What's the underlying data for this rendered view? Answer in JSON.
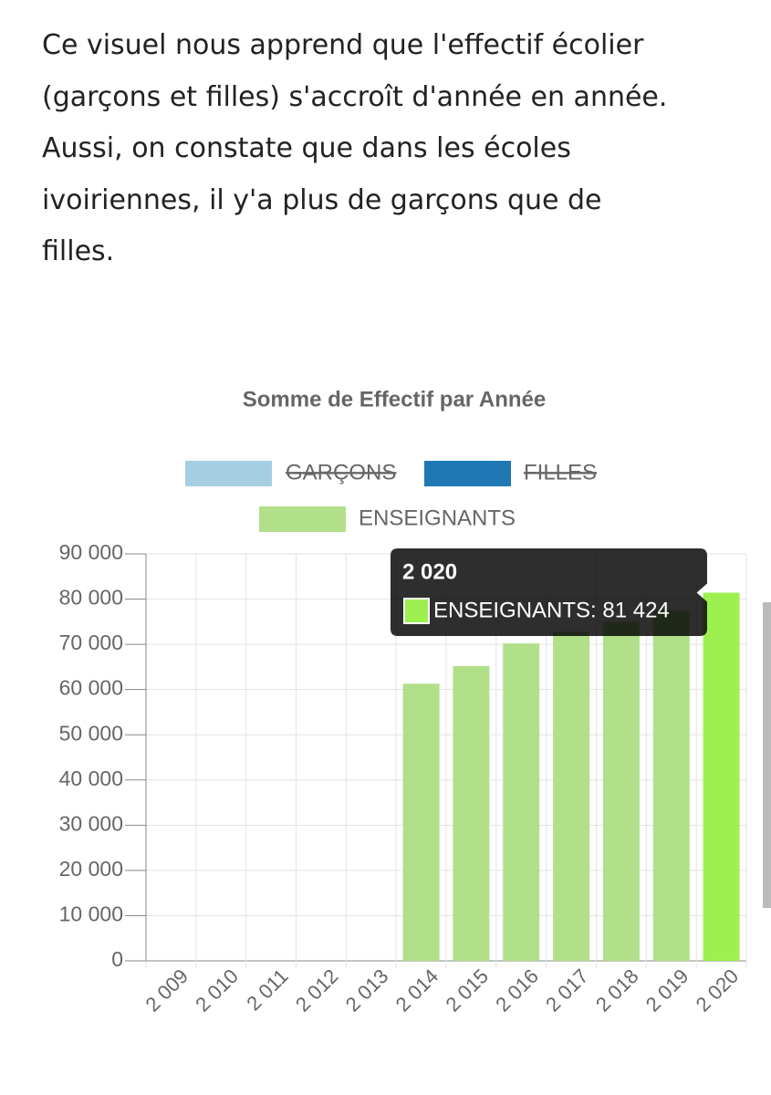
{
  "paragraph_lines": [
    "Ce visuel nous apprend que l'effectif écolier",
    "(garçons et filles) s'accroît d'année en année.",
    "Aussi, on constate que dans les écoles",
    "ivoiriennes, il y'a plus de garçons que de",
    "filles."
  ],
  "chart_data": {
    "type": "bar",
    "title": "Somme de Effectif par Année",
    "categories": [
      "2 009",
      "2 010",
      "2 011",
      "2 012",
      "2 013",
      "2 014",
      "2 015",
      "2 016",
      "2 017",
      "2 018",
      "2 019",
      "2 020"
    ],
    "series": [
      {
        "name": "GARÇONS",
        "color": "#a6cee3",
        "hidden": true,
        "values": [
          null,
          null,
          null,
          null,
          null,
          null,
          null,
          null,
          null,
          null,
          null,
          null
        ]
      },
      {
        "name": "FILLES",
        "color": "#1f78b4",
        "hidden": true,
        "values": [
          null,
          null,
          null,
          null,
          null,
          null,
          null,
          null,
          null,
          null,
          null,
          null
        ]
      },
      {
        "name": "ENSEIGNANTS",
        "color": "#b2df8a",
        "highlight_color": "#9ef050",
        "hidden": false,
        "values": [
          null,
          null,
          null,
          null,
          null,
          61300,
          65200,
          70200,
          72800,
          75000,
          77500,
          81424
        ]
      }
    ],
    "ylim": [
      0,
      90000
    ],
    "yticks": [
      0,
      {
        "value": 10000,
        "label": "10 000"
      },
      {
        "value": 20000,
        "label": "20 000"
      },
      {
        "value": 30000,
        "label": "30 000"
      },
      {
        "value": 40000,
        "label": "40 000"
      },
      {
        "value": 50000,
        "label": "50 000"
      },
      {
        "value": 60000,
        "label": "60 000"
      },
      {
        "value": 70000,
        "label": "70 000"
      },
      {
        "value": 80000,
        "label": "80 000"
      },
      {
        "value": 90000,
        "label": "90 000"
      }
    ],
    "grid": true,
    "tooltip": {
      "title": "2 020",
      "label": "ENSEIGNANTS: 81 424",
      "series": 2,
      "index": 11
    }
  }
}
